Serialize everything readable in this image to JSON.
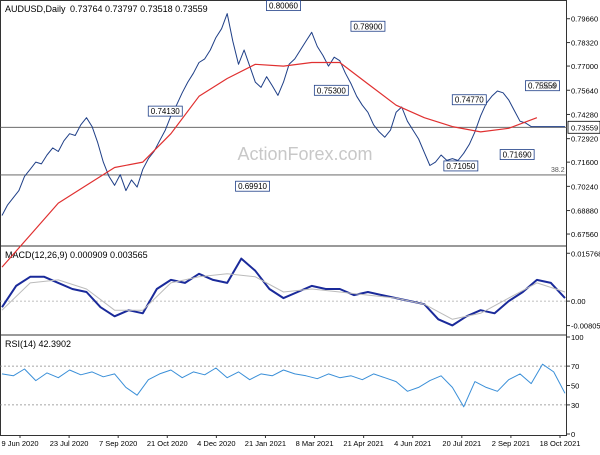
{
  "chart_data": [
    {
      "panel": "price",
      "type": "line",
      "title": "AUDUSD,Daily",
      "ohlc_label": "0.73764 0.73797 0.73518 0.73559",
      "watermark": "ActionForex.com",
      "ylim": [
        0.67,
        0.806
      ],
      "yticks": [
        "0.79660",
        "0.78320",
        "0.77000",
        "0.75640",
        "0.74280",
        "0.72920",
        "0.71600",
        "0.70240",
        "0.68880",
        "0.67560"
      ],
      "last_price": "0.73559",
      "series": [
        {
          "key": "price",
          "color": "#1f3f87",
          "x": [
            0,
            2,
            4,
            6,
            8,
            10,
            12,
            14,
            16,
            18,
            20,
            22,
            24,
            26,
            28,
            30,
            32,
            34,
            36,
            38,
            40,
            42,
            44,
            46,
            48,
            50,
            52,
            54,
            56,
            58,
            60,
            62,
            64,
            66,
            68,
            70,
            72,
            74,
            76,
            78,
            80,
            82,
            84,
            86,
            88,
            90,
            92,
            94,
            96,
            98,
            100,
            102,
            104,
            106,
            108,
            110,
            112,
            114,
            116,
            118,
            120,
            122,
            124,
            126,
            128,
            130,
            132,
            134,
            136,
            138,
            140,
            142,
            144,
            146,
            148,
            150,
            152,
            154,
            156,
            158,
            160,
            162,
            164,
            166,
            168,
            170,
            172,
            174,
            176,
            178,
            180,
            182,
            184,
            186,
            188,
            190,
            192,
            194,
            196,
            198,
            200
          ],
          "values": [
            0.686,
            0.692,
            0.696,
            0.7,
            0.708,
            0.712,
            0.716,
            0.715,
            0.72,
            0.724,
            0.722,
            0.728,
            0.732,
            0.731,
            0.737,
            0.741,
            0.736,
            0.727,
            0.716,
            0.708,
            0.703,
            0.709,
            0.7,
            0.706,
            0.702,
            0.712,
            0.718,
            0.722,
            0.728,
            0.734,
            0.742,
            0.748,
            0.755,
            0.761,
            0.766,
            0.772,
            0.774,
            0.779,
            0.786,
            0.791,
            0.7995,
            0.784,
            0.771,
            0.779,
            0.77,
            0.761,
            0.758,
            0.764,
            0.759,
            0.7535,
            0.761,
            0.771,
            0.774,
            0.779,
            0.784,
            0.789,
            0.781,
            0.776,
            0.77,
            0.775,
            0.773,
            0.766,
            0.76,
            0.753,
            0.748,
            0.744,
            0.737,
            0.733,
            0.73,
            0.734,
            0.744,
            0.747,
            0.739,
            0.734,
            0.729,
            0.7215,
            0.7141,
            0.716,
            0.72,
            0.717,
            0.718,
            0.7169,
            0.721,
            0.726,
            0.733,
            0.742,
            0.749,
            0.753,
            0.756,
            0.755,
            0.751,
            0.745,
            0.739,
            0.738,
            0.736,
            0.736,
            0.736,
            0.736,
            0.736,
            0.736,
            0.736
          ]
        },
        {
          "key": "sma55",
          "color": "#e03030",
          "x": [
            0,
            10,
            20,
            30,
            40,
            50,
            60,
            70,
            80,
            90,
            100,
            110,
            120,
            130,
            140,
            150,
            160,
            170,
            180,
            190
          ],
          "values": [
            0.657,
            0.675,
            0.693,
            0.703,
            0.713,
            0.716,
            0.732,
            0.753,
            0.763,
            0.771,
            0.77,
            0.772,
            0.772,
            0.76,
            0.748,
            0.741,
            0.736,
            0.733,
            0.735,
            0.741
          ]
        }
      ],
      "annotations": [
        {
          "label": "0.80060",
          "x": 100,
          "y": 0.8006
        },
        {
          "label": "0.78900",
          "x": 130,
          "y": 0.789
        },
        {
          "label": "0.75300",
          "x": 117,
          "y": 0.753
        },
        {
          "label": "0.74130",
          "x": 58,
          "y": 0.7413
        },
        {
          "label": "0.69910",
          "x": 89,
          "y": 0.6991
        },
        {
          "label": "0.74770",
          "x": 166,
          "y": 0.7477
        },
        {
          "label": "0.75559",
          "x": 192,
          "y": 0.75559
        },
        {
          "label": "0.71690",
          "x": 183,
          "y": 0.7169
        },
        {
          "label": "0.71050",
          "x": 163,
          "y": 0.7105
        }
      ],
      "fib_labels": {
        "hi": "100.0",
        "lo": "38.2"
      },
      "hlines": [
        0.73559,
        0.7088
      ]
    },
    {
      "panel": "macd",
      "type": "line",
      "label": "MACD(12,26,9) 0.000909 0.003565",
      "ylim": [
        -0.0105,
        0.0175
      ],
      "yticks": [
        "0.015768",
        "0.00",
        "-0.008053"
      ],
      "series": [
        {
          "key": "macd",
          "color": "#1a2a9a",
          "x": [
            0,
            5,
            10,
            15,
            20,
            25,
            30,
            35,
            40,
            45,
            50,
            55,
            60,
            65,
            70,
            75,
            80,
            85,
            90,
            95,
            100,
            105,
            110,
            115,
            120,
            125,
            130,
            135,
            140,
            145,
            150,
            155,
            160,
            165,
            170,
            175,
            180,
            185,
            190,
            195,
            200
          ],
          "values": [
            -0.002,
            0.005,
            0.008,
            0.008,
            0.006,
            0.004,
            0.003,
            -0.002,
            -0.005,
            -0.003,
            -0.004,
            0.004,
            0.007,
            0.006,
            0.009,
            0.007,
            0.006,
            0.014,
            0.01,
            0.004,
            0.001,
            0.003,
            0.005,
            0.004,
            0.004,
            0.002,
            0.003,
            0.002,
            0.001,
            0.0,
            -0.001,
            -0.006,
            -0.008,
            -0.005,
            -0.003,
            -0.004,
            0.0,
            0.003,
            0.007,
            0.006,
            0.001
          ]
        },
        {
          "key": "signal",
          "color": "#bbbbbb",
          "x": [
            0,
            10,
            20,
            30,
            40,
            50,
            60,
            70,
            80,
            90,
            100,
            110,
            120,
            130,
            140,
            150,
            160,
            170,
            180,
            190,
            200
          ],
          "values": [
            -0.003,
            0.006,
            0.007,
            0.004,
            -0.003,
            -0.003,
            0.006,
            0.008,
            0.009,
            0.008,
            0.003,
            0.004,
            0.003,
            0.002,
            0.001,
            -0.001,
            -0.006,
            -0.004,
            0.001,
            0.006,
            0.003
          ]
        }
      ]
    },
    {
      "panel": "rsi",
      "type": "line",
      "label": "RSI(14) 42.3902",
      "ylim": [
        0,
        100
      ],
      "yticks": [
        "100",
        "70",
        "50",
        "30",
        "0"
      ],
      "series": [
        {
          "key": "rsi",
          "color": "#3a8fd8",
          "x": [
            0,
            4,
            8,
            12,
            16,
            20,
            24,
            28,
            32,
            36,
            40,
            44,
            48,
            52,
            56,
            60,
            64,
            68,
            72,
            76,
            80,
            84,
            88,
            92,
            96,
            100,
            104,
            108,
            112,
            116,
            120,
            124,
            128,
            132,
            136,
            140,
            144,
            148,
            152,
            156,
            160,
            164,
            168,
            172,
            176,
            180,
            184,
            188,
            192,
            196,
            200
          ],
          "values": [
            62,
            60,
            67,
            55,
            63,
            58,
            66,
            61,
            64,
            59,
            62,
            48,
            40,
            56,
            62,
            66,
            58,
            64,
            61,
            68,
            58,
            64,
            56,
            62,
            60,
            66,
            62,
            60,
            57,
            62,
            58,
            60,
            56,
            62,
            58,
            54,
            44,
            48,
            55,
            60,
            48,
            28,
            54,
            48,
            44,
            56,
            62,
            52,
            72,
            64,
            42
          ]
        }
      ],
      "hlines": [
        70,
        30
      ]
    }
  ],
  "x_axis": {
    "categories": [
      "9 Jun 2020",
      "23 Jul 2020",
      "7 Sep 2020",
      "21 Oct 2020",
      "4 Dec 2020",
      "21 Jan 2021",
      "8 Mar 2021",
      "21 Apr 2021",
      "4 Jun 2021",
      "20 Jul 2021",
      "2 Sep 2021",
      "18 Oct 2021"
    ]
  }
}
